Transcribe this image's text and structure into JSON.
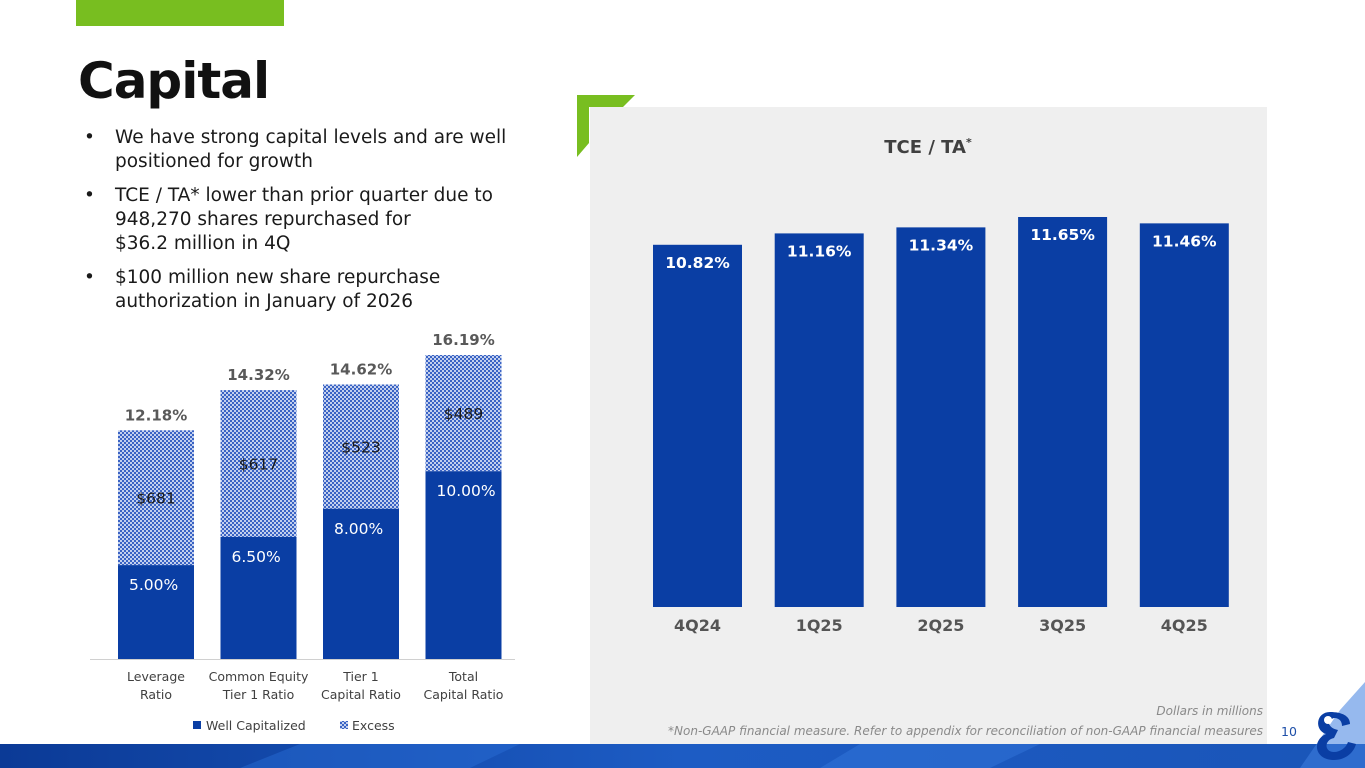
{
  "page": {
    "title": "Capital",
    "page_number": "10",
    "notes": {
      "dollars": "Dollars in millions",
      "non_gaap": "*Non-GAAP financial measure. Refer to appendix for reconciliation of non-GAAP financial measures"
    },
    "colors": {
      "accent_green": "#78be20",
      "brand_blue": "#0a3ea4",
      "panel_gray": "#efefef"
    }
  },
  "bullets": [
    {
      "lines": [
        "We have strong capital levels and are well",
        "positioned for growth"
      ]
    },
    {
      "lines": [
        "TCE / TA*  lower than prior quarter due to",
        "948,270 shares repurchased for",
        "$36.2 million in 4Q"
      ]
    },
    {
      "lines": [
        "$100 million new share repurchase",
        "authorization in January of 2026"
      ]
    }
  ],
  "chart_data": [
    {
      "type": "bar",
      "stacked": true,
      "categories": [
        [
          "Leverage",
          "Ratio"
        ],
        [
          "Common Equity",
          "Tier 1 Ratio"
        ],
        [
          "Tier 1",
          "Capital Ratio"
        ],
        [
          "Total",
          "Capital Ratio"
        ]
      ],
      "totals": [
        "12.18%",
        "14.32%",
        "14.62%",
        "16.19%"
      ],
      "total_values": [
        12.18,
        14.32,
        14.62,
        16.19
      ],
      "series": [
        {
          "name": "Well Capitalized",
          "values": [
            5.0,
            6.5,
            8.0,
            10.0
          ],
          "labels": [
            "5.00%",
            "6.50%",
            "8.00%",
            "10.00%"
          ],
          "color": "#0a3ea4"
        },
        {
          "name": "Excess",
          "values": [
            7.18,
            7.82,
            6.62,
            6.19
          ],
          "labels": [
            "$681",
            "$617",
            "$523",
            "$489"
          ],
          "color": "#5b7fd1",
          "pattern": "checker"
        }
      ],
      "ylim": [
        0,
        16.19
      ],
      "legend": "bottom",
      "grid": false
    },
    {
      "type": "bar",
      "title": "TCE / TA",
      "title_superscript": "*",
      "categories": [
        "4Q24",
        "1Q25",
        "2Q25",
        "3Q25",
        "4Q25"
      ],
      "values": [
        10.82,
        11.16,
        11.34,
        11.65,
        11.46
      ],
      "labels": [
        "10.82%",
        "11.16%",
        "11.34%",
        "11.65%",
        "11.46%"
      ],
      "ylim": [
        0,
        11.65
      ],
      "color": "#0a3ea4",
      "grid": false,
      "legend": "none"
    }
  ]
}
